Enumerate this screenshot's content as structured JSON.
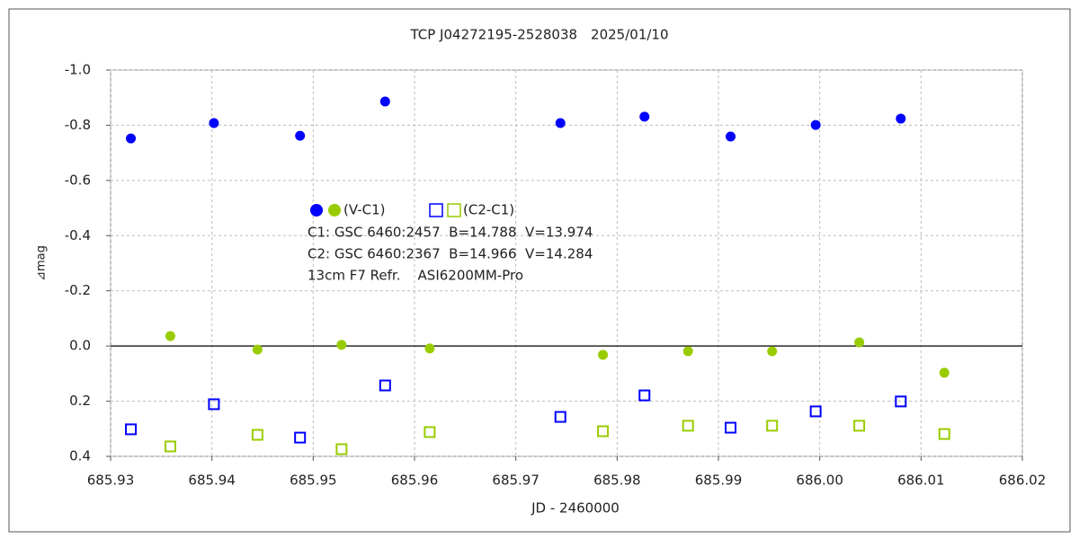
{
  "chart_data": {
    "type": "scatter",
    "title": "TCP J04272195-2528038　2025/01/10",
    "xlabel": "JD - 2460000",
    "ylabel": "⊿mag",
    "xlim": [
      685.93,
      686.02
    ],
    "xticks": [
      685.93,
      685.94,
      685.95,
      685.96,
      685.97,
      685.98,
      685.99,
      {
        "value": 686.0,
        "label": "686.00"
      },
      686.01,
      686.02
    ],
    "ylim": [
      -1.0,
      0.4
    ],
    "y_reversed": true,
    "yticks": [
      {
        "value": -1.0,
        "label": "-1.0"
      },
      -0.8,
      -0.6,
      -0.4,
      -0.2,
      {
        "value": 0,
        "label": "0.0"
      },
      0.2,
      0.4
    ],
    "grid": true,
    "series": [
      {
        "marker": "circle",
        "color": "#0000ff",
        "x": [
          685.932,
          685.9402,
          685.9487,
          685.9571,
          685.9744,
          685.9827,
          685.9912,
          685.9996,
          686.008
        ],
        "values": [
          -0.752,
          -0.808,
          -0.762,
          -0.886,
          -0.808,
          -0.831,
          -0.759,
          -0.801,
          -0.824
        ]
      },
      {
        "marker": "circle",
        "color": "#99cc00",
        "x": [
          685.9359,
          685.9445,
          685.9528,
          685.9615,
          685.9786,
          685.987,
          685.9953,
          686.0039,
          686.0123
        ],
        "values": [
          -0.036,
          0.013,
          -0.004,
          0.009,
          0.032,
          0.019,
          0.019,
          -0.013,
          0.097
        ]
      },
      {
        "marker": "square",
        "color": "#0000ff",
        "x": [
          685.932,
          685.9402,
          685.9487,
          685.9571,
          685.9744,
          685.9827,
          685.9912,
          685.9996,
          686.008
        ],
        "values": [
          0.302,
          0.211,
          0.332,
          0.143,
          0.257,
          0.179,
          0.296,
          0.237,
          0.201
        ]
      },
      {
        "marker": "square",
        "color": "#99cc00",
        "x": [
          685.9359,
          685.9445,
          685.9528,
          685.9615,
          685.9786,
          685.987,
          685.9953,
          686.0039,
          686.0123
        ],
        "values": [
          0.364,
          0.322,
          0.374,
          0.312,
          0.309,
          0.289,
          0.289,
          0.289,
          0.319
        ]
      }
    ],
    "legend": [
      {
        "label": "(V-C1)",
        "marker": "circle",
        "colors": [
          "#0000ff",
          "#99cc00"
        ]
      },
      {
        "label": "(C2-C1)",
        "marker": "square",
        "colors": [
          "#0000ff",
          "#99cc00"
        ]
      }
    ],
    "annotations": [
      "C1: GSC 6460:2457  B=14.788  V=13.974",
      "C2: GSC 6460:2367  B=14.966  V=14.284",
      "13cm F7 Refr.    ASI6200MM-Pro"
    ]
  }
}
